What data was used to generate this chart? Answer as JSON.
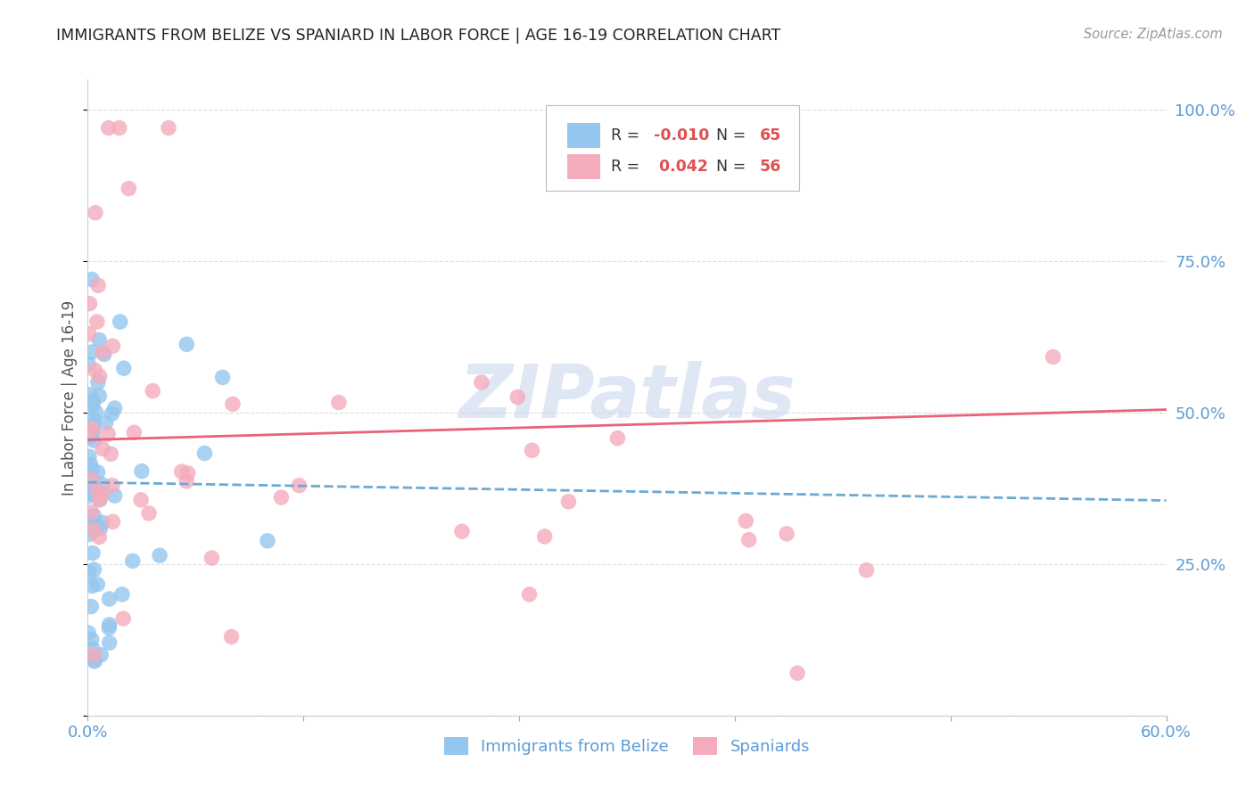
{
  "title": "IMMIGRANTS FROM BELIZE VS SPANIARD IN LABOR FORCE | AGE 16-19 CORRELATION CHART",
  "source": "Source: ZipAtlas.com",
  "ylabel": "In Labor Force | Age 16-19",
  "legend_label_blue": "Immigrants from Belize",
  "legend_label_pink": "Spaniards",
  "blue_color": "#94C6EE",
  "pink_color": "#F4ACBC",
  "blue_line_color": "#6AAAD4",
  "pink_line_color": "#E8637A",
  "axis_label_color": "#5B9BD5",
  "watermark_color": "#C8D8EC",
  "background_color": "#FFFFFF",
  "grid_color": "#DDDDDD",
  "blue_r": -0.01,
  "blue_n": 65,
  "pink_r": 0.042,
  "pink_n": 56,
  "blue_line_x0": 0.0,
  "blue_line_x1": 0.6,
  "blue_line_y0": 0.385,
  "blue_line_y1": 0.355,
  "pink_line_x0": 0.0,
  "pink_line_x1": 0.6,
  "pink_line_y0": 0.455,
  "pink_line_y1": 0.505,
  "xlim": [
    0.0,
    0.6
  ],
  "ylim": [
    0.0,
    1.05
  ]
}
